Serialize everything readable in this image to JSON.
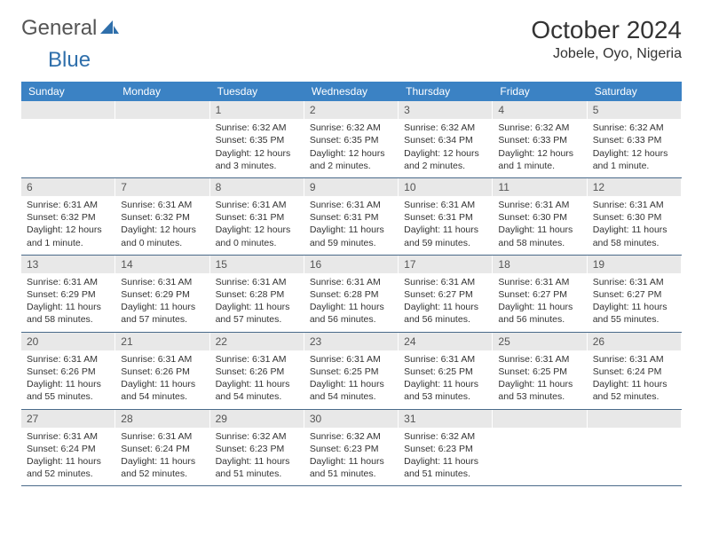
{
  "logo": {
    "text1": "General",
    "text2": "Blue"
  },
  "title": {
    "month": "October 2024",
    "location": "Jobele, Oyo, Nigeria"
  },
  "colors": {
    "header_bg": "#3b82c4",
    "header_text": "#ffffff",
    "daynum_bg": "#e8e8e8",
    "week_border": "#4a6a8a",
    "text": "#333333",
    "logo_blue": "#2f6fab"
  },
  "day_names": [
    "Sunday",
    "Monday",
    "Tuesday",
    "Wednesday",
    "Thursday",
    "Friday",
    "Saturday"
  ],
  "weeks": [
    [
      null,
      null,
      {
        "n": "1",
        "sr": "Sunrise: 6:32 AM",
        "ss": "Sunset: 6:35 PM",
        "dl1": "Daylight: 12 hours",
        "dl2": "and 3 minutes."
      },
      {
        "n": "2",
        "sr": "Sunrise: 6:32 AM",
        "ss": "Sunset: 6:35 PM",
        "dl1": "Daylight: 12 hours",
        "dl2": "and 2 minutes."
      },
      {
        "n": "3",
        "sr": "Sunrise: 6:32 AM",
        "ss": "Sunset: 6:34 PM",
        "dl1": "Daylight: 12 hours",
        "dl2": "and 2 minutes."
      },
      {
        "n": "4",
        "sr": "Sunrise: 6:32 AM",
        "ss": "Sunset: 6:33 PM",
        "dl1": "Daylight: 12 hours",
        "dl2": "and 1 minute."
      },
      {
        "n": "5",
        "sr": "Sunrise: 6:32 AM",
        "ss": "Sunset: 6:33 PM",
        "dl1": "Daylight: 12 hours",
        "dl2": "and 1 minute."
      }
    ],
    [
      {
        "n": "6",
        "sr": "Sunrise: 6:31 AM",
        "ss": "Sunset: 6:32 PM",
        "dl1": "Daylight: 12 hours",
        "dl2": "and 1 minute."
      },
      {
        "n": "7",
        "sr": "Sunrise: 6:31 AM",
        "ss": "Sunset: 6:32 PM",
        "dl1": "Daylight: 12 hours",
        "dl2": "and 0 minutes."
      },
      {
        "n": "8",
        "sr": "Sunrise: 6:31 AM",
        "ss": "Sunset: 6:31 PM",
        "dl1": "Daylight: 12 hours",
        "dl2": "and 0 minutes."
      },
      {
        "n": "9",
        "sr": "Sunrise: 6:31 AM",
        "ss": "Sunset: 6:31 PM",
        "dl1": "Daylight: 11 hours",
        "dl2": "and 59 minutes."
      },
      {
        "n": "10",
        "sr": "Sunrise: 6:31 AM",
        "ss": "Sunset: 6:31 PM",
        "dl1": "Daylight: 11 hours",
        "dl2": "and 59 minutes."
      },
      {
        "n": "11",
        "sr": "Sunrise: 6:31 AM",
        "ss": "Sunset: 6:30 PM",
        "dl1": "Daylight: 11 hours",
        "dl2": "and 58 minutes."
      },
      {
        "n": "12",
        "sr": "Sunrise: 6:31 AM",
        "ss": "Sunset: 6:30 PM",
        "dl1": "Daylight: 11 hours",
        "dl2": "and 58 minutes."
      }
    ],
    [
      {
        "n": "13",
        "sr": "Sunrise: 6:31 AM",
        "ss": "Sunset: 6:29 PM",
        "dl1": "Daylight: 11 hours",
        "dl2": "and 58 minutes."
      },
      {
        "n": "14",
        "sr": "Sunrise: 6:31 AM",
        "ss": "Sunset: 6:29 PM",
        "dl1": "Daylight: 11 hours",
        "dl2": "and 57 minutes."
      },
      {
        "n": "15",
        "sr": "Sunrise: 6:31 AM",
        "ss": "Sunset: 6:28 PM",
        "dl1": "Daylight: 11 hours",
        "dl2": "and 57 minutes."
      },
      {
        "n": "16",
        "sr": "Sunrise: 6:31 AM",
        "ss": "Sunset: 6:28 PM",
        "dl1": "Daylight: 11 hours",
        "dl2": "and 56 minutes."
      },
      {
        "n": "17",
        "sr": "Sunrise: 6:31 AM",
        "ss": "Sunset: 6:27 PM",
        "dl1": "Daylight: 11 hours",
        "dl2": "and 56 minutes."
      },
      {
        "n": "18",
        "sr": "Sunrise: 6:31 AM",
        "ss": "Sunset: 6:27 PM",
        "dl1": "Daylight: 11 hours",
        "dl2": "and 56 minutes."
      },
      {
        "n": "19",
        "sr": "Sunrise: 6:31 AM",
        "ss": "Sunset: 6:27 PM",
        "dl1": "Daylight: 11 hours",
        "dl2": "and 55 minutes."
      }
    ],
    [
      {
        "n": "20",
        "sr": "Sunrise: 6:31 AM",
        "ss": "Sunset: 6:26 PM",
        "dl1": "Daylight: 11 hours",
        "dl2": "and 55 minutes."
      },
      {
        "n": "21",
        "sr": "Sunrise: 6:31 AM",
        "ss": "Sunset: 6:26 PM",
        "dl1": "Daylight: 11 hours",
        "dl2": "and 54 minutes."
      },
      {
        "n": "22",
        "sr": "Sunrise: 6:31 AM",
        "ss": "Sunset: 6:26 PM",
        "dl1": "Daylight: 11 hours",
        "dl2": "and 54 minutes."
      },
      {
        "n": "23",
        "sr": "Sunrise: 6:31 AM",
        "ss": "Sunset: 6:25 PM",
        "dl1": "Daylight: 11 hours",
        "dl2": "and 54 minutes."
      },
      {
        "n": "24",
        "sr": "Sunrise: 6:31 AM",
        "ss": "Sunset: 6:25 PM",
        "dl1": "Daylight: 11 hours",
        "dl2": "and 53 minutes."
      },
      {
        "n": "25",
        "sr": "Sunrise: 6:31 AM",
        "ss": "Sunset: 6:25 PM",
        "dl1": "Daylight: 11 hours",
        "dl2": "and 53 minutes."
      },
      {
        "n": "26",
        "sr": "Sunrise: 6:31 AM",
        "ss": "Sunset: 6:24 PM",
        "dl1": "Daylight: 11 hours",
        "dl2": "and 52 minutes."
      }
    ],
    [
      {
        "n": "27",
        "sr": "Sunrise: 6:31 AM",
        "ss": "Sunset: 6:24 PM",
        "dl1": "Daylight: 11 hours",
        "dl2": "and 52 minutes."
      },
      {
        "n": "28",
        "sr": "Sunrise: 6:31 AM",
        "ss": "Sunset: 6:24 PM",
        "dl1": "Daylight: 11 hours",
        "dl2": "and 52 minutes."
      },
      {
        "n": "29",
        "sr": "Sunrise: 6:32 AM",
        "ss": "Sunset: 6:23 PM",
        "dl1": "Daylight: 11 hours",
        "dl2": "and 51 minutes."
      },
      {
        "n": "30",
        "sr": "Sunrise: 6:32 AM",
        "ss": "Sunset: 6:23 PM",
        "dl1": "Daylight: 11 hours",
        "dl2": "and 51 minutes."
      },
      {
        "n": "31",
        "sr": "Sunrise: 6:32 AM",
        "ss": "Sunset: 6:23 PM",
        "dl1": "Daylight: 11 hours",
        "dl2": "and 51 minutes."
      },
      null,
      null
    ]
  ]
}
